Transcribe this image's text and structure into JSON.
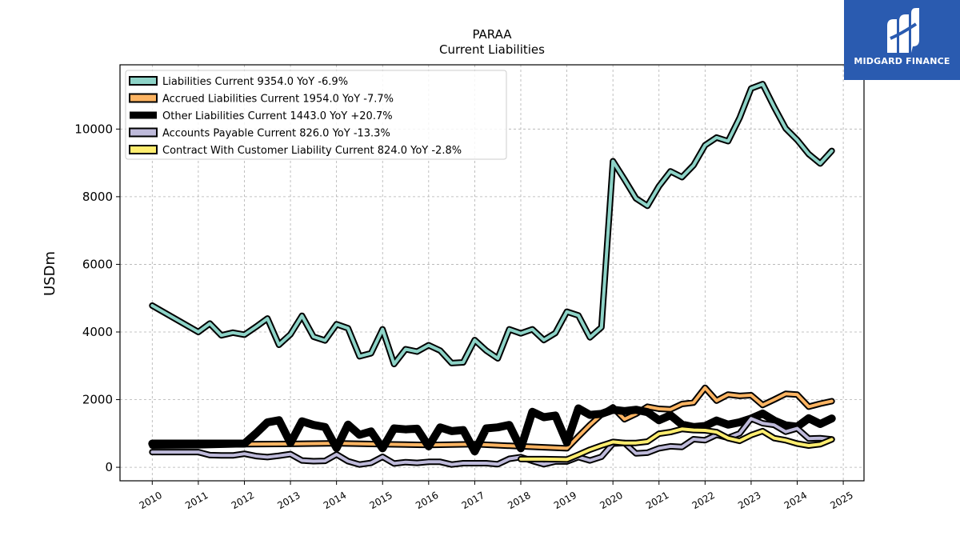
{
  "chart_data": {
    "type": "line",
    "title": "PARAA",
    "subtitle": "Current  Liabilities",
    "ylabel": "USDm",
    "xlabel": "",
    "xlim": [
      2009.3,
      2025.45
    ],
    "ylim": [
      -400,
      11900
    ],
    "x_ticks": [
      "2010",
      "2011",
      "2012",
      "2013",
      "2014",
      "2015",
      "2016",
      "2017",
      "2018",
      "2019",
      "2020",
      "2021",
      "2022",
      "2023",
      "2024",
      "2025"
    ],
    "y_ticks": [
      0,
      2000,
      4000,
      6000,
      8000,
      10000
    ],
    "grid": true,
    "legend_position": "top-left",
    "series": [
      {
        "name": "Liabilities Current",
        "legend": "Liabilities Current  9354.0 YoY -6.9%",
        "color": "#8dd3c7",
        "width": 4,
        "points": [
          [
            2010.0,
            4780
          ],
          [
            2011.0,
            4000
          ],
          [
            2011.25,
            4250
          ],
          [
            2011.5,
            3900
          ],
          [
            2011.75,
            3980
          ],
          [
            2012.0,
            3920
          ],
          [
            2012.25,
            4150
          ],
          [
            2012.5,
            4400
          ],
          [
            2012.75,
            3620
          ],
          [
            2013.0,
            3930
          ],
          [
            2013.25,
            4480
          ],
          [
            2013.5,
            3860
          ],
          [
            2013.75,
            3750
          ],
          [
            2014.0,
            4230
          ],
          [
            2014.25,
            4110
          ],
          [
            2014.5,
            3280
          ],
          [
            2014.75,
            3370
          ],
          [
            2015.0,
            4080
          ],
          [
            2015.25,
            3050
          ],
          [
            2015.5,
            3490
          ],
          [
            2015.75,
            3420
          ],
          [
            2016.0,
            3610
          ],
          [
            2016.25,
            3450
          ],
          [
            2016.5,
            3080
          ],
          [
            2016.75,
            3100
          ],
          [
            2017.0,
            3760
          ],
          [
            2017.25,
            3450
          ],
          [
            2017.5,
            3220
          ],
          [
            2017.75,
            4080
          ],
          [
            2018.0,
            3960
          ],
          [
            2018.25,
            4080
          ],
          [
            2018.5,
            3760
          ],
          [
            2018.75,
            3970
          ],
          [
            2019.0,
            4600
          ],
          [
            2019.25,
            4490
          ],
          [
            2019.5,
            3840
          ],
          [
            2019.75,
            4140
          ],
          [
            2020.0,
            9050
          ],
          [
            2020.25,
            8510
          ],
          [
            2020.5,
            7950
          ],
          [
            2020.75,
            7730
          ],
          [
            2021.0,
            8310
          ],
          [
            2021.25,
            8750
          ],
          [
            2021.5,
            8580
          ],
          [
            2021.75,
            8930
          ],
          [
            2022.0,
            9520
          ],
          [
            2022.25,
            9750
          ],
          [
            2022.5,
            9640
          ],
          [
            2022.75,
            10330
          ],
          [
            2023.0,
            11200
          ],
          [
            2023.25,
            11330
          ],
          [
            2023.5,
            10650
          ],
          [
            2023.75,
            10020
          ],
          [
            2024.0,
            9680
          ],
          [
            2024.25,
            9260
          ],
          [
            2024.5,
            8980
          ],
          [
            2024.75,
            9354
          ]
        ]
      },
      {
        "name": "Accrued Liabilities Current",
        "legend": "Accrued Liabilities Current  1954.0 YoY -7.7%",
        "color": "#fdb462",
        "width": 4,
        "points": [
          [
            2010.0,
            640
          ],
          [
            2011.0,
            650
          ],
          [
            2012.0,
            680
          ],
          [
            2013.0,
            690
          ],
          [
            2014.0,
            710
          ],
          [
            2015.0,
            680
          ],
          [
            2016.0,
            660
          ],
          [
            2017.0,
            680
          ],
          [
            2018.0,
            620
          ],
          [
            2019.0,
            560
          ],
          [
            2019.25,
            910
          ],
          [
            2019.5,
            1250
          ],
          [
            2019.75,
            1560
          ],
          [
            2020.0,
            1770
          ],
          [
            2020.25,
            1420
          ],
          [
            2020.5,
            1580
          ],
          [
            2020.75,
            1790
          ],
          [
            2021.0,
            1730
          ],
          [
            2021.25,
            1710
          ],
          [
            2021.5,
            1870
          ],
          [
            2021.75,
            1910
          ],
          [
            2022.0,
            2350
          ],
          [
            2022.25,
            1970
          ],
          [
            2022.5,
            2150
          ],
          [
            2022.75,
            2110
          ],
          [
            2023.0,
            2130
          ],
          [
            2023.25,
            1840
          ],
          [
            2023.5,
            2000
          ],
          [
            2023.75,
            2170
          ],
          [
            2024.0,
            2150
          ],
          [
            2024.25,
            1790
          ],
          [
            2024.5,
            1880
          ],
          [
            2024.75,
            1954
          ]
        ]
      },
      {
        "name": "Other Liabilities Current",
        "legend": "Other Liabilities Current  1443.0 YoY +20.7%",
        "color": "#000000",
        "width": 10,
        "points": [
          [
            2010.0,
            700
          ],
          [
            2011.0,
            700
          ],
          [
            2012.0,
            700
          ],
          [
            2012.25,
            1000
          ],
          [
            2012.5,
            1330
          ],
          [
            2012.75,
            1390
          ],
          [
            2013.0,
            720
          ],
          [
            2013.25,
            1360
          ],
          [
            2013.5,
            1250
          ],
          [
            2013.75,
            1190
          ],
          [
            2014.0,
            570
          ],
          [
            2014.25,
            1260
          ],
          [
            2014.5,
            960
          ],
          [
            2014.75,
            1060
          ],
          [
            2015.0,
            560
          ],
          [
            2015.25,
            1150
          ],
          [
            2015.5,
            1120
          ],
          [
            2015.75,
            1140
          ],
          [
            2016.0,
            620
          ],
          [
            2016.25,
            1180
          ],
          [
            2016.5,
            1070
          ],
          [
            2016.75,
            1100
          ],
          [
            2017.0,
            470
          ],
          [
            2017.25,
            1150
          ],
          [
            2017.5,
            1180
          ],
          [
            2017.75,
            1250
          ],
          [
            2018.0,
            560
          ],
          [
            2018.25,
            1640
          ],
          [
            2018.5,
            1480
          ],
          [
            2018.75,
            1530
          ],
          [
            2019.0,
            730
          ],
          [
            2019.25,
            1740
          ],
          [
            2019.5,
            1550
          ],
          [
            2019.75,
            1580
          ],
          [
            2020.0,
            1700
          ],
          [
            2020.25,
            1660
          ],
          [
            2020.5,
            1700
          ],
          [
            2020.75,
            1630
          ],
          [
            2021.0,
            1390
          ],
          [
            2021.25,
            1540
          ],
          [
            2021.5,
            1260
          ],
          [
            2021.75,
            1190
          ],
          [
            2022.0,
            1220
          ],
          [
            2022.25,
            1380
          ],
          [
            2022.5,
            1260
          ],
          [
            2022.75,
            1330
          ],
          [
            2023.0,
            1440
          ],
          [
            2023.25,
            1590
          ],
          [
            2023.5,
            1380
          ],
          [
            2023.75,
            1240
          ],
          [
            2024.0,
            1200
          ],
          [
            2024.25,
            1450
          ],
          [
            2024.5,
            1280
          ],
          [
            2024.75,
            1443
          ]
        ]
      },
      {
        "name": "Accounts Payable Current",
        "legend": "Accounts Payable Current  826.0 YoY -13.3%",
        "color": "#bebada",
        "width": 4,
        "points": [
          [
            2010.0,
            450
          ],
          [
            2011.0,
            450
          ],
          [
            2011.25,
            360
          ],
          [
            2011.5,
            350
          ],
          [
            2011.75,
            350
          ],
          [
            2012.0,
            400
          ],
          [
            2012.25,
            330
          ],
          [
            2012.5,
            300
          ],
          [
            2012.75,
            340
          ],
          [
            2013.0,
            390
          ],
          [
            2013.25,
            200
          ],
          [
            2013.5,
            180
          ],
          [
            2013.75,
            190
          ],
          [
            2014.0,
            380
          ],
          [
            2014.25,
            180
          ],
          [
            2014.5,
            80
          ],
          [
            2014.75,
            130
          ],
          [
            2015.0,
            310
          ],
          [
            2015.25,
            110
          ],
          [
            2015.5,
            150
          ],
          [
            2015.75,
            130
          ],
          [
            2016.0,
            160
          ],
          [
            2016.25,
            160
          ],
          [
            2016.5,
            80
          ],
          [
            2016.75,
            120
          ],
          [
            2017.0,
            120
          ],
          [
            2017.25,
            120
          ],
          [
            2017.5,
            90
          ],
          [
            2017.75,
            250
          ],
          [
            2018.0,
            300
          ],
          [
            2018.25,
            190
          ],
          [
            2018.5,
            90
          ],
          [
            2018.75,
            170
          ],
          [
            2019.0,
            170
          ],
          [
            2019.25,
            300
          ],
          [
            2019.5,
            200
          ],
          [
            2019.75,
            310
          ],
          [
            2020.0,
            700
          ],
          [
            2020.25,
            720
          ],
          [
            2020.5,
            410
          ],
          [
            2020.75,
            430
          ],
          [
            2021.0,
            560
          ],
          [
            2021.25,
            620
          ],
          [
            2021.5,
            600
          ],
          [
            2021.75,
            830
          ],
          [
            2022.0,
            800
          ],
          [
            2022.25,
            960
          ],
          [
            2022.5,
            870
          ],
          [
            2022.75,
            1000
          ],
          [
            2023.0,
            1440
          ],
          [
            2023.25,
            1300
          ],
          [
            2023.5,
            1250
          ],
          [
            2023.75,
            1050
          ],
          [
            2024.0,
            1150
          ],
          [
            2024.25,
            850
          ],
          [
            2024.5,
            860
          ],
          [
            2024.75,
            826
          ]
        ]
      },
      {
        "name": "Contract With Customer Liability Current",
        "legend": "Contract With Customer Liability Current  824.0 YoY -2.8%",
        "color": "#ffed6f",
        "width": 4,
        "points": [
          [
            2018.0,
            240
          ],
          [
            2018.5,
            240
          ],
          [
            2019.0,
            230
          ],
          [
            2019.25,
            370
          ],
          [
            2019.5,
            520
          ],
          [
            2019.75,
            640
          ],
          [
            2020.0,
            750
          ],
          [
            2020.25,
            720
          ],
          [
            2020.5,
            720
          ],
          [
            2020.75,
            760
          ],
          [
            2021.0,
            990
          ],
          [
            2021.25,
            1040
          ],
          [
            2021.5,
            1130
          ],
          [
            2021.75,
            1100
          ],
          [
            2022.0,
            1090
          ],
          [
            2022.25,
            1040
          ],
          [
            2022.5,
            860
          ],
          [
            2022.75,
            780
          ],
          [
            2023.0,
            950
          ],
          [
            2023.25,
            1070
          ],
          [
            2023.5,
            860
          ],
          [
            2023.75,
            800
          ],
          [
            2024.0,
            700
          ],
          [
            2024.25,
            640
          ],
          [
            2024.5,
            680
          ],
          [
            2024.75,
            824
          ]
        ]
      }
    ]
  },
  "brand": {
    "name": "MIDGARD FINANCE",
    "logo_color": "#2a5bb0"
  }
}
